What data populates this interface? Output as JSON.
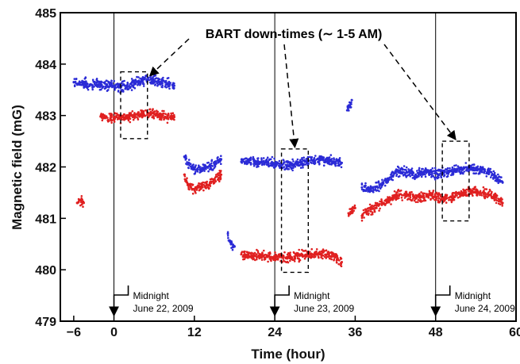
{
  "chart_data": {
    "type": "scatter",
    "title": "",
    "xlabel": "Time (hour)",
    "ylabel": "Magnetic field (mG)",
    "xlim": [
      -8,
      60
    ],
    "ylim": [
      479,
      485
    ],
    "x_ticks": [
      {
        "value": -6,
        "label": "−6"
      },
      {
        "value": 0,
        "label": "0"
      },
      {
        "value": 12,
        "label": "12"
      },
      {
        "value": 24,
        "label": "24"
      },
      {
        "value": 36,
        "label": "36"
      },
      {
        "value": 48,
        "label": "48"
      },
      {
        "value": 60,
        "label": "60"
      }
    ],
    "y_ticks": [
      {
        "value": 479,
        "label": "479"
      },
      {
        "value": 480,
        "label": "480"
      },
      {
        "value": 481,
        "label": "481"
      },
      {
        "value": 482,
        "label": "482"
      },
      {
        "value": 483,
        "label": "483"
      },
      {
        "value": 484,
        "label": "484"
      },
      {
        "value": 485,
        "label": "485"
      }
    ],
    "grid": false,
    "series": [
      {
        "color": "#2b2bd6",
        "segments": [
          {
            "x": [
              -6,
              -4,
              -2,
              0,
              1,
              2,
              3,
              4,
              5,
              6,
              7,
              8,
              9
            ],
            "y": [
              483.65,
              483.62,
              483.6,
              483.58,
              483.55,
              483.58,
              483.62,
              483.66,
              483.7,
              483.68,
              483.65,
              483.62,
              483.58
            ]
          },
          {
            "x": [
              10.5,
              11,
              12,
              13,
              14,
              15,
              16
            ],
            "y": [
              482.2,
              482.05,
              481.95,
              481.95,
              482.0,
              482.05,
              482.15
            ]
          },
          {
            "x": [
              17,
              17.5,
              18
            ],
            "y": [
              480.7,
              480.5,
              480.45
            ]
          },
          {
            "x": [
              19,
              20,
              21,
              22,
              23,
              24,
              25,
              26,
              27,
              28,
              29,
              30,
              31,
              32,
              33,
              34
            ],
            "y": [
              482.1,
              482.1,
              482.1,
              482.1,
              482.1,
              482.05,
              482.05,
              482.03,
              482.05,
              482.1,
              482.12,
              482.12,
              482.15,
              482.12,
              482.1,
              482.08
            ]
          },
          {
            "x": [
              34.8,
              35.2,
              35.5
            ],
            "y": [
              483.1,
              483.2,
              483.3
            ]
          },
          {
            "x": [
              37,
              38,
              39,
              40,
              41,
              42,
              43,
              44,
              45,
              46,
              47,
              48,
              49,
              50,
              51,
              52,
              53,
              54,
              55,
              56,
              57,
              58
            ],
            "y": [
              481.6,
              481.55,
              481.6,
              481.65,
              481.75,
              481.9,
              481.9,
              481.9,
              481.85,
              481.9,
              481.9,
              481.88,
              481.88,
              481.9,
              481.92,
              481.95,
              482.0,
              481.95,
              481.95,
              481.9,
              481.8,
              481.7
            ]
          }
        ]
      },
      {
        "color": "#e02020",
        "segments": [
          {
            "x": [
              -5.5,
              -5,
              -4.5
            ],
            "y": [
              481.3,
              481.35,
              481.3
            ]
          },
          {
            "x": [
              -2,
              0,
              1,
              2,
              3,
              4,
              5,
              6,
              7,
              8,
              9
            ],
            "y": [
              482.98,
              482.97,
              482.95,
              482.97,
              483.0,
              483.03,
              483.05,
              483.03,
              483.0,
              482.98,
              482.97
            ]
          },
          {
            "x": [
              10.5,
              11,
              12,
              13,
              14,
              15,
              16
            ],
            "y": [
              481.85,
              481.65,
              481.55,
              481.6,
              481.65,
              481.75,
              481.85
            ]
          },
          {
            "x": [
              19,
              20,
              21,
              22,
              23,
              24,
              25,
              26,
              27,
              28,
              29,
              30,
              31,
              32,
              33,
              34
            ],
            "y": [
              480.3,
              480.3,
              480.28,
              480.27,
              480.26,
              480.25,
              480.24,
              480.23,
              480.25,
              480.28,
              480.3,
              480.3,
              480.3,
              480.3,
              480.25,
              480.15
            ]
          },
          {
            "x": [
              35,
              36
            ],
            "y": [
              481.1,
              481.2
            ]
          },
          {
            "x": [
              37,
              38,
              39,
              40,
              41,
              42,
              43,
              44,
              45,
              46,
              47,
              48,
              49,
              50,
              51,
              52,
              53,
              54,
              55,
              56,
              57,
              58
            ],
            "y": [
              481.05,
              481.15,
              481.2,
              481.3,
              481.35,
              481.45,
              481.45,
              481.45,
              481.4,
              481.42,
              481.45,
              481.42,
              481.4,
              481.4,
              481.45,
              481.5,
              481.55,
              481.52,
              481.5,
              481.45,
              481.4,
              481.3
            ]
          }
        ]
      }
    ],
    "midnight_markers": [
      {
        "x": 0,
        "line1": "Midnight",
        "line2": "June 22, 2009"
      },
      {
        "x": 24,
        "line1": "Midnight",
        "line2": "June 23, 2009"
      },
      {
        "x": 48,
        "line1": "Midnight",
        "line2": "June 24, 2009"
      }
    ],
    "annotation": {
      "text": "BART down-times (∼ 1-5 AM)",
      "boxes": [
        {
          "x0": 1,
          "x1": 5,
          "y0": 482.55,
          "y1": 483.85
        },
        {
          "x0": 25,
          "x1": 29,
          "y0": 479.95,
          "y1": 482.35
        },
        {
          "x0": 49,
          "x1": 53,
          "y0": 480.95,
          "y1": 482.5
        }
      ]
    }
  }
}
